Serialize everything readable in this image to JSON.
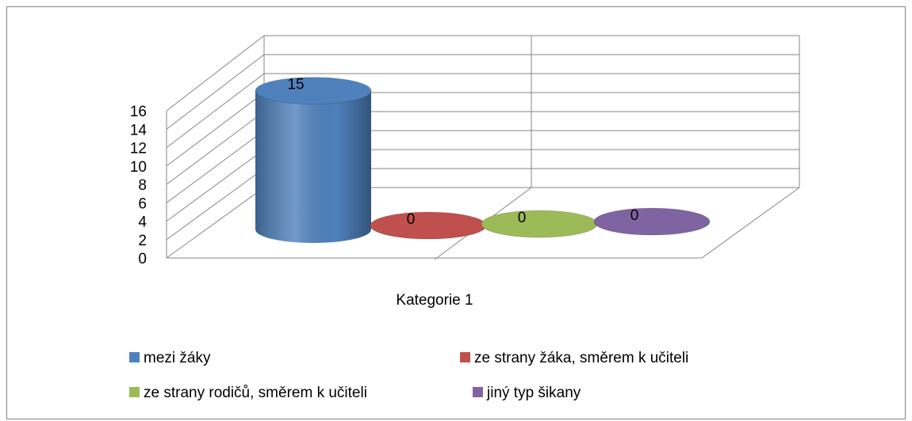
{
  "chart_data": {
    "type": "bar",
    "categories": [
      "Kategorie 1"
    ],
    "series": [
      {
        "name": "mezi žáky",
        "color": "#4f81bd",
        "values": [
          15
        ]
      },
      {
        "name": "ze strany žáka, směrem k učiteli",
        "color": "#c0504d",
        "values": [
          0
        ]
      },
      {
        "name": "ze strany rodičů, směrem k učiteli",
        "color": "#9bbb59",
        "values": [
          0
        ]
      },
      {
        "name": "jiný typ šikany",
        "color": "#8064a2",
        "values": [
          0
        ]
      }
    ],
    "ylim": [
      0,
      16
    ],
    "yticks": [
      0,
      2,
      4,
      6,
      8,
      10,
      12,
      14,
      16
    ],
    "grid": true,
    "legend": "bottom"
  }
}
